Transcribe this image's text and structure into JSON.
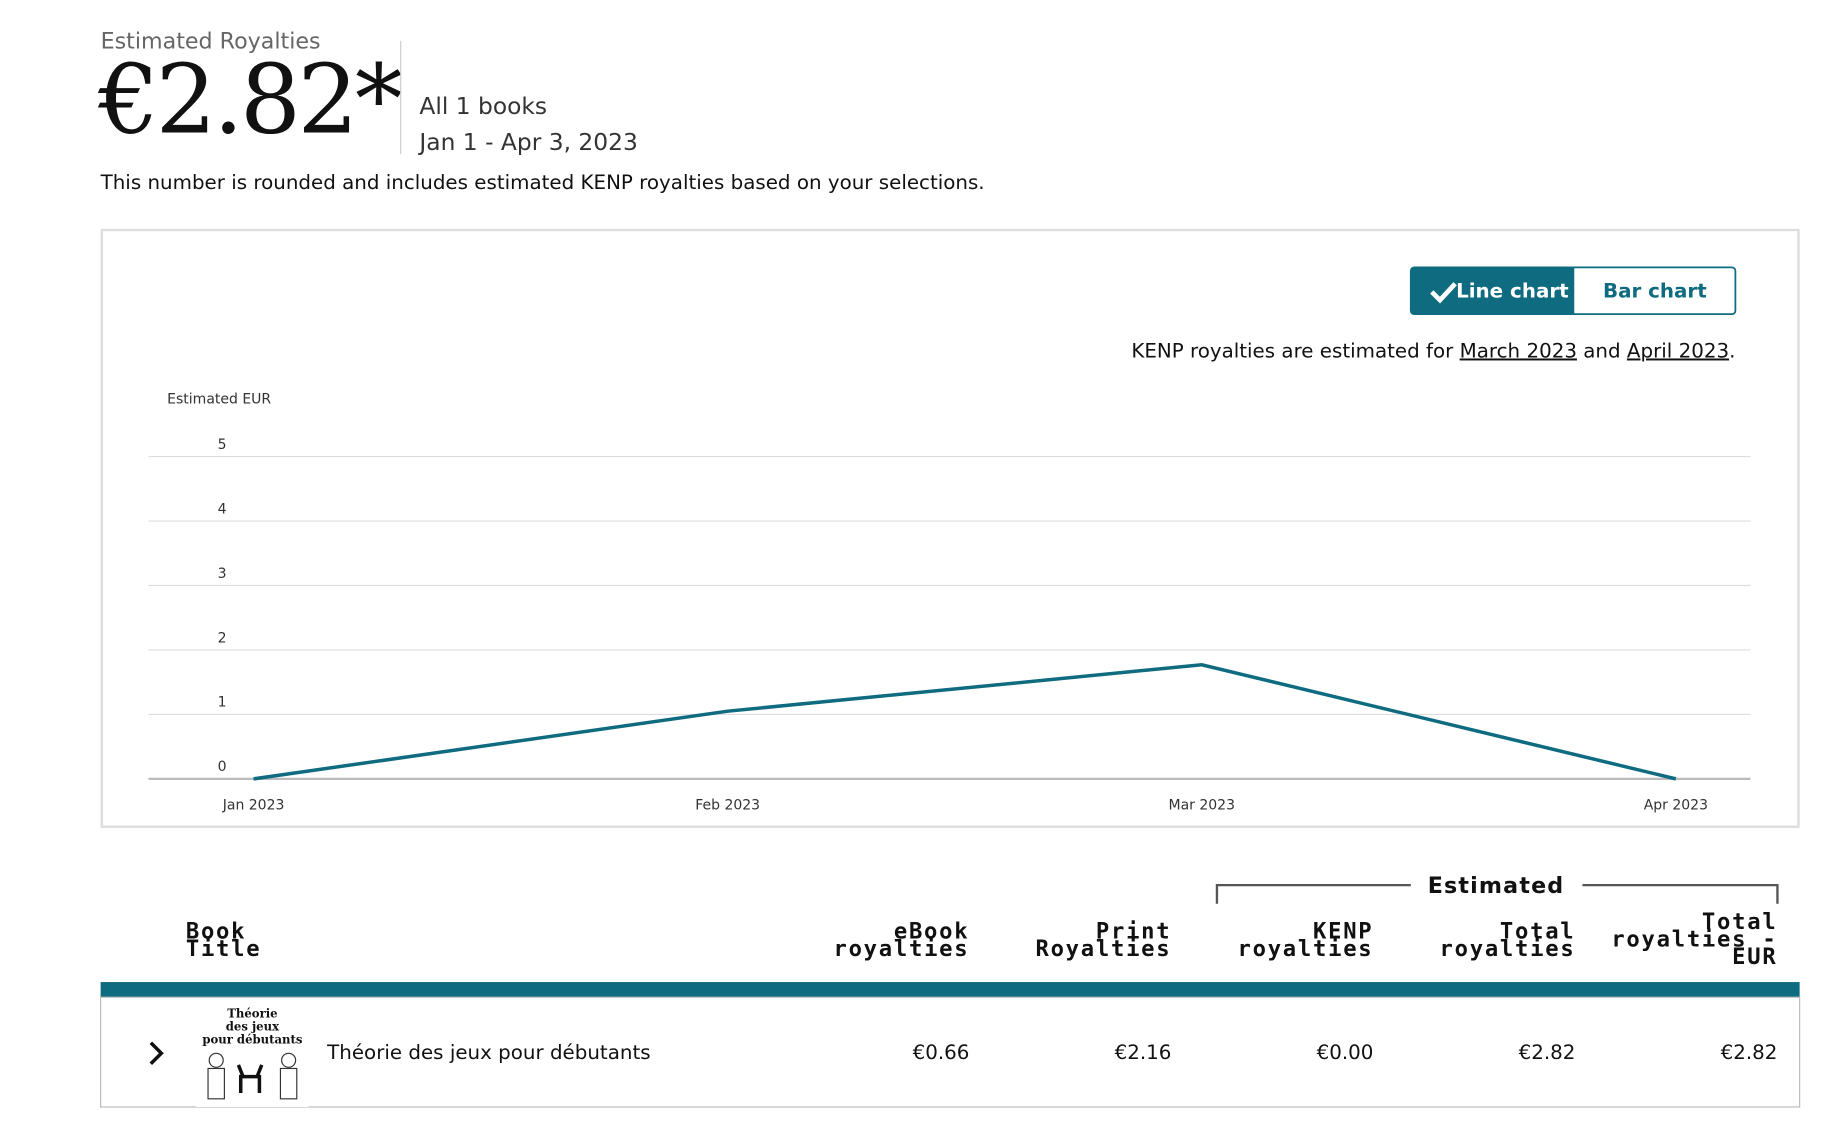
{
  "header": {
    "label": "Estimated Royalties",
    "amount": "€2.82*",
    "scope": "All 1 books",
    "period": "Jan 1 - Apr 3, 2023",
    "note": "This number is rounded and includes estimated KENP royalties based on your selections."
  },
  "toggle": {
    "options": [
      "Line chart",
      "Bar chart"
    ]
  },
  "kenp_note": {
    "parts": [
      "KENP royalties are estimated for ",
      "March 2023",
      " and ",
      "April 2023",
      "."
    ]
  },
  "chart_data": {
    "type": "line",
    "y_label": "Estimated EUR",
    "categories": [
      "Jan 2023",
      "Feb 2023",
      "Mar 2023",
      "Apr 2023"
    ],
    "values": [
      0,
      1.05,
      1.77,
      0
    ],
    "color": "#0f6b80",
    "ylim": [
      0,
      5
    ],
    "yticks": [
      0,
      1,
      2,
      3,
      4,
      5
    ],
    "grid": true
  },
  "table": {
    "group_header": "Estimated",
    "columns": [
      [
        "Book",
        "Title"
      ],
      [
        "eBook",
        "royalties"
      ],
      [
        "Print",
        "Royalties"
      ],
      [
        "KENP",
        "royalties"
      ],
      [
        "Total",
        "royalties"
      ],
      [
        "Total",
        "royalties -",
        "EUR"
      ]
    ],
    "rows": [
      {
        "cover": [
          "Théorie",
          "des jeux",
          "pour débutants"
        ],
        "title": "Théorie des jeux pour débutants",
        "cells": [
          "€0.66",
          "€2.16",
          "€0.00",
          "€2.82",
          "€2.82"
        ]
      }
    ]
  }
}
